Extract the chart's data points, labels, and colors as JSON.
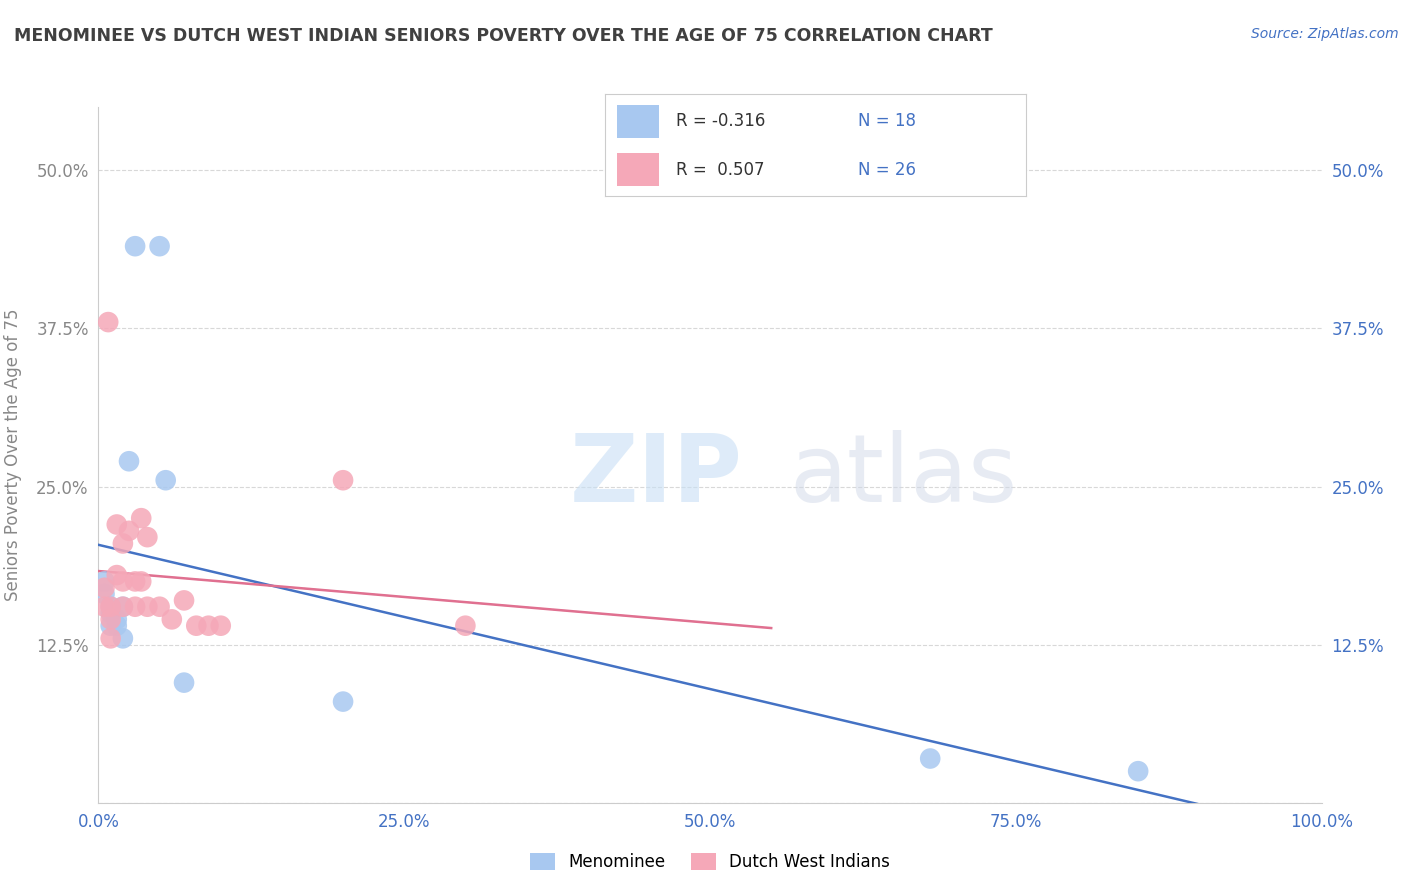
{
  "title": "MENOMINEE VS DUTCH WEST INDIAN SENIORS POVERTY OVER THE AGE OF 75 CORRELATION CHART",
  "source": "Source: ZipAtlas.com",
  "ylabel": "Seniors Poverty Over the Age of 75",
  "xlim": [
    0,
    1.0
  ],
  "ylim": [
    0,
    0.55
  ],
  "yticks": [
    0.0,
    0.125,
    0.25,
    0.375,
    0.5
  ],
  "ytick_labels_left": [
    "",
    "12.5%",
    "25.0%",
    "37.5%",
    "50.0%"
  ],
  "ytick_labels_right": [
    "",
    "12.5%",
    "25.0%",
    "37.5%",
    "50.0%"
  ],
  "xticks": [
    0.0,
    0.25,
    0.5,
    0.75,
    1.0
  ],
  "xtick_labels": [
    "0.0%",
    "25.0%",
    "50.0%",
    "75.0%",
    "100.0%"
  ],
  "menominee_color": "#a8c8f0",
  "dutch_color": "#f5a8b8",
  "menominee_line_color": "#4472c4",
  "dutch_line_color": "#e07090",
  "watermark_zip": "ZIP",
  "watermark_atlas": "atlas",
  "menominee_x": [
    0.005,
    0.005,
    0.01,
    0.01,
    0.01,
    0.015,
    0.015,
    0.02,
    0.02,
    0.025,
    0.03,
    0.05,
    0.055,
    0.07,
    0.2,
    0.68,
    0.85
  ],
  "menominee_y": [
    0.165,
    0.175,
    0.155,
    0.15,
    0.14,
    0.14,
    0.145,
    0.13,
    0.155,
    0.27,
    0.44,
    0.44,
    0.255,
    0.095,
    0.08,
    0.035,
    0.025
  ],
  "dutch_x": [
    0.005,
    0.005,
    0.008,
    0.01,
    0.01,
    0.01,
    0.015,
    0.015,
    0.02,
    0.02,
    0.02,
    0.025,
    0.03,
    0.03,
    0.035,
    0.035,
    0.04,
    0.04,
    0.05,
    0.06,
    0.07,
    0.08,
    0.09,
    0.1,
    0.2,
    0.3
  ],
  "dutch_y": [
    0.155,
    0.17,
    0.38,
    0.155,
    0.145,
    0.13,
    0.22,
    0.18,
    0.205,
    0.175,
    0.155,
    0.215,
    0.175,
    0.155,
    0.225,
    0.175,
    0.155,
    0.21,
    0.155,
    0.145,
    0.16,
    0.14,
    0.14,
    0.14,
    0.255,
    0.14
  ],
  "background_color": "#ffffff",
  "grid_color": "#d8d8d8",
  "title_color": "#404040",
  "axis_label_color": "#4472c4",
  "left_tick_color": "#888888",
  "right_tick_color": "#4472c4"
}
